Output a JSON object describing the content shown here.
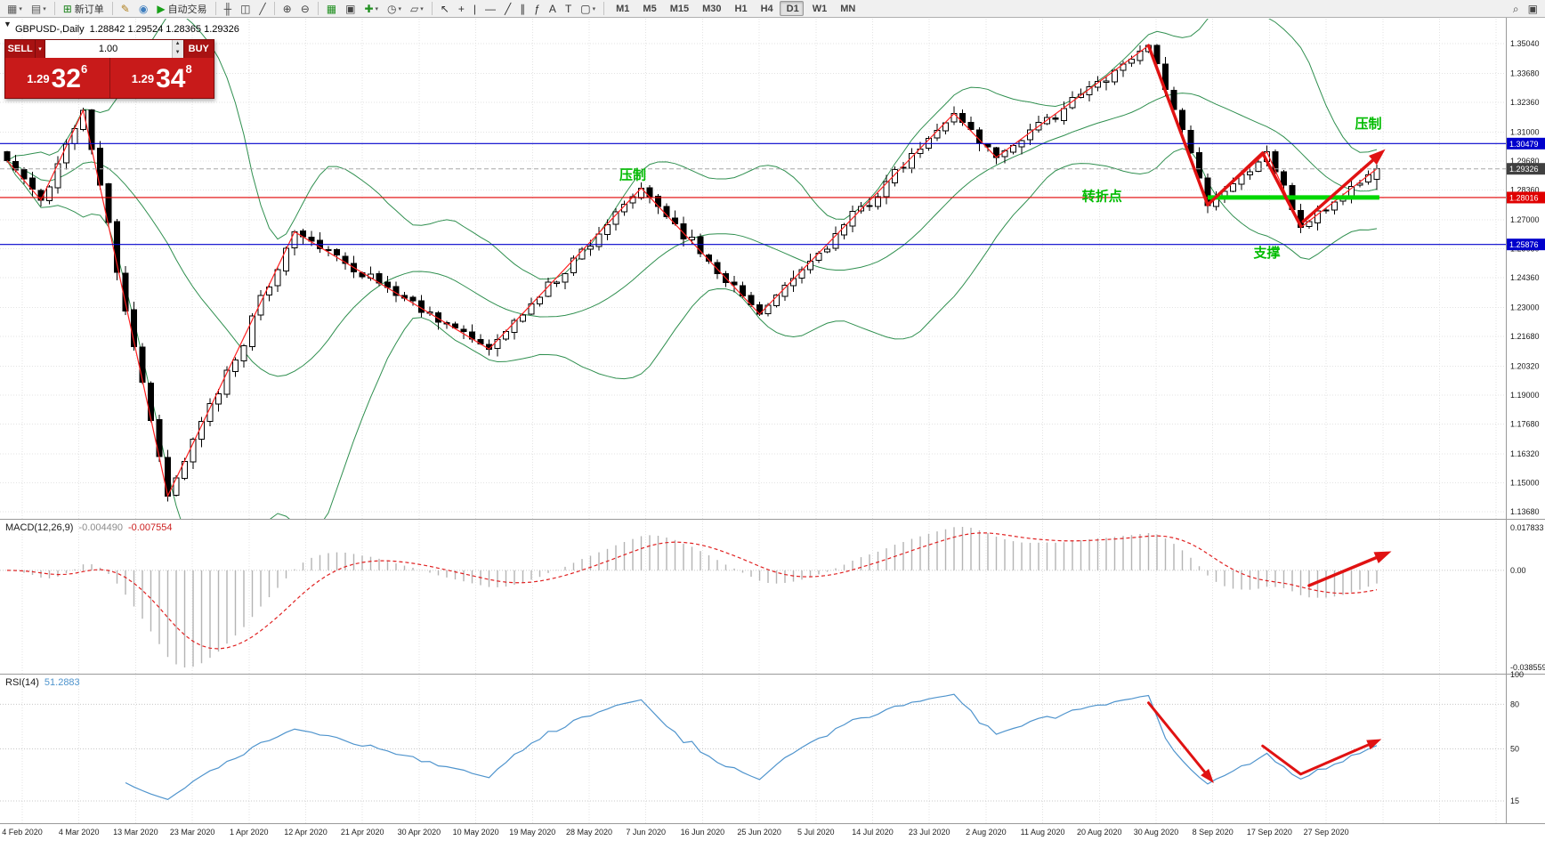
{
  "colors": {
    "accent_green": "#00bb00",
    "support_line": "#00d800",
    "arrow_red": "#e01212",
    "zigzag_red": "#ff2020",
    "bollinger_green": "#2f8f4f",
    "rsi_blue": "#4f94cd",
    "macd_hist": "#b4b4b4",
    "macd_signal": "#e02020",
    "hline_blue": "#0000cc",
    "hline_red": "#e00000",
    "bid_tag_bg": "#404040",
    "panel_red": "#c81a1a",
    "panel_dark_red": "#9e1010"
  },
  "toolbar": {
    "groups": [
      {
        "name": "chart-windows-group",
        "items": [
          {
            "name": "new-chart-icon",
            "glyph": "▦",
            "color": "#555",
            "dropdown": true
          },
          {
            "name": "profiles-icon",
            "glyph": "▤",
            "color": "#555",
            "dropdown": true
          }
        ]
      },
      {
        "name": "order-group",
        "items": [
          {
            "name": "new-order-button",
            "glyph": "⊞",
            "color": "#188018",
            "label": "新订单"
          }
        ]
      },
      {
        "name": "autotrade-group",
        "items": [
          {
            "name": "metaeditor-icon",
            "glyph": "✎",
            "color": "#b08020"
          },
          {
            "name": "market-icon",
            "glyph": "◉",
            "color": "#3f7fbf"
          },
          {
            "name": "autotrading-button",
            "glyph": "▶",
            "color": "#18a018",
            "label": "自动交易"
          }
        ]
      },
      {
        "name": "chart-type-group",
        "items": [
          {
            "name": "bar-chart-type-icon",
            "glyph": "╫",
            "color": "#444"
          },
          {
            "name": "candlestick-type-icon",
            "glyph": "◫",
            "color": "#444"
          },
          {
            "name": "line-chart-type-icon",
            "glyph": "╱",
            "color": "#444"
          }
        ]
      },
      {
        "name": "zoom-group",
        "items": [
          {
            "name": "zoom-in-icon",
            "glyph": "⊕",
            "color": "#444"
          },
          {
            "name": "zoom-out-icon",
            "glyph": "⊖",
            "color": "#444"
          }
        ]
      },
      {
        "name": "window-tools-group",
        "items": [
          {
            "name": "tile-windows-icon",
            "glyph": "▦",
            "color": "#1f8f1f"
          },
          {
            "name": "cascade-windows-icon",
            "glyph": "▣",
            "color": "#444"
          },
          {
            "name": "indicators-icon",
            "glyph": "✚",
            "color": "#1f8f1f",
            "dropdown": true
          },
          {
            "name": "periods-icon",
            "glyph": "◷",
            "color": "#444",
            "dropdown": true
          },
          {
            "name": "templates-icon",
            "glyph": "▱",
            "color": "#444",
            "dropdown": true
          }
        ]
      },
      {
        "name": "drawing-tools-group",
        "items": [
          {
            "name": "cursor-icon",
            "glyph": "↖",
            "color": "#333"
          },
          {
            "name": "crosshair-icon",
            "glyph": "+",
            "color": "#333"
          },
          {
            "name": "vertical-line-icon",
            "glyph": "|",
            "color": "#333"
          },
          {
            "name": "horizontal-line-icon",
            "glyph": "―",
            "color": "#333"
          },
          {
            "name": "trendline-icon",
            "glyph": "╱",
            "color": "#333"
          },
          {
            "name": "channel-icon",
            "glyph": "∥",
            "color": "#333"
          },
          {
            "name": "fibonacci-icon",
            "glyph": "ƒ",
            "color": "#333"
          },
          {
            "name": "text-icon",
            "glyph": "A",
            "color": "#333"
          },
          {
            "name": "label-icon",
            "glyph": "T",
            "color": "#333"
          },
          {
            "name": "shapes-icon",
            "glyph": "▢",
            "color": "#333",
            "dropdown": true
          }
        ]
      },
      {
        "name": "timeframe-group",
        "items": [
          {
            "name": "timeframe-m1",
            "label": "M1"
          },
          {
            "name": "timeframe-m5",
            "label": "M5"
          },
          {
            "name": "timeframe-m15",
            "label": "M15"
          },
          {
            "name": "timeframe-m30",
            "label": "M30"
          },
          {
            "name": "timeframe-h1",
            "label": "H1"
          },
          {
            "name": "timeframe-h4",
            "label": "H4"
          },
          {
            "name": "timeframe-d1",
            "label": "D1",
            "active": true
          },
          {
            "name": "timeframe-w1",
            "label": "W1"
          },
          {
            "name": "timeframe-mn",
            "label": "MN"
          }
        ]
      },
      {
        "name": "right-icons-group",
        "right": true,
        "items": [
          {
            "name": "search-icon",
            "glyph": "⌕",
            "color": "#444"
          },
          {
            "name": "community-icon",
            "glyph": "▣",
            "color": "#444"
          }
        ]
      }
    ]
  },
  "info": {
    "symbol_period": "GBPUSD-,Daily",
    "ohlc": "1.28842 1.29524 1.28365 1.29326"
  },
  "one_click": {
    "toggle_glyph": "▼",
    "sell_label": "SELL",
    "buy_label": "BUY",
    "volume": "1.00",
    "sell_price_prefix": "1.29",
    "sell_price_big": "32",
    "sell_price_sup": "6",
    "buy_price_prefix": "1.29",
    "buy_price_big": "34",
    "buy_price_sup": "8"
  },
  "chart_data": {
    "type": "candlestick",
    "symbol": "GBPUSD-",
    "timeframe": "Daily",
    "price_pane": {
      "axis_labels": [
        "1.35040",
        "1.33680",
        "1.32360",
        "1.31000",
        "1.29680",
        "1.28360",
        "1.27000",
        "1.25680",
        "1.24360",
        "1.23000",
        "1.21680",
        "1.20320",
        "1.19000",
        "1.17680",
        "1.16320",
        "1.15000",
        "1.13680"
      ],
      "price_max": 1.3504,
      "price_min": 1.1368,
      "candles": {
        "count": 163,
        "seed": 11,
        "zigzag_anchors": [
          [
            0,
            1.297
          ],
          [
            4,
            1.279
          ],
          [
            9,
            1.32
          ],
          [
            19,
            1.144
          ],
          [
            34,
            1.2645
          ],
          [
            57,
            1.211
          ],
          [
            75,
            1.2845
          ],
          [
            89,
            1.227
          ],
          [
            112,
            1.3185
          ],
          [
            117,
            1.2985
          ],
          [
            135,
            1.3495
          ],
          [
            142,
            1.2765
          ],
          [
            149,
            1.301
          ],
          [
            153,
            1.2665
          ],
          [
            162,
            1.29326
          ]
        ]
      },
      "last_candle": {
        "open": 1.28842,
        "high": 1.29524,
        "low": 1.28365,
        "close": 1.29326
      },
      "bollinger": {
        "period": 20,
        "deviation": 2
      },
      "hlines": [
        {
          "price": 1.30479,
          "color": "#0000cc",
          "tag": "1.30479"
        },
        {
          "price": 1.28016,
          "color": "#e00000",
          "tag": "1.28016"
        },
        {
          "price": 1.25876,
          "color": "#0000cc",
          "tag": "1.25876"
        }
      ],
      "bid": {
        "price": 1.29326,
        "tag": "1.29326"
      },
      "support_line": {
        "from_i": 142,
        "to_i": 162.3,
        "price": 1.2802,
        "width": 5
      },
      "annotations": [
        {
          "text": "压制",
          "i": 74,
          "p": 1.2885
        },
        {
          "text": "转折点",
          "i": 129.5,
          "p": 1.2787
        },
        {
          "text": "支撑",
          "i": 149,
          "p": 1.253
        },
        {
          "text": "压制",
          "i": 161,
          "p": 1.3118
        }
      ],
      "arrows": [
        {
          "points": [
            [
              135,
              1.3495
            ],
            [
              142,
              1.2768
            ],
            [
              148.5,
              1.3005
            ],
            [
              153,
              1.2672
            ]
          ],
          "width": 3.5,
          "head": false
        },
        {
          "points": [
            [
              153.3,
              1.2692
            ],
            [
              162,
              1.2988
            ]
          ],
          "width": 3.5,
          "head": true
        }
      ]
    },
    "macd_pane": {
      "label": "MACD(12,26,9)",
      "value_main": "-0.004490",
      "value_signal": "-0.007554",
      "fast": 12,
      "slow": 26,
      "signal": 9,
      "axis_max_label": "0.017833",
      "axis_zero_label": "0.00",
      "axis_min_label": "-0.038559",
      "arrow": {
        "points": [
          [
            154,
            -0.0058
          ],
          [
            162.5,
            0.0056
          ]
        ],
        "width": 3.5,
        "head": true
      }
    },
    "rsi_pane": {
      "label": "RSI(14)",
      "value": "51.2883",
      "period": 14,
      "levels": [
        80,
        50,
        15
      ],
      "axis_labels": [
        {
          "v": 100,
          "text": "100"
        },
        {
          "v": 80,
          "text": "80"
        },
        {
          "v": 50,
          "text": "50"
        },
        {
          "v": 15,
          "text": "15"
        }
      ],
      "arrows": [
        {
          "points": [
            [
              135,
              81
            ],
            [
              142,
              32
            ]
          ],
          "width": 3,
          "head": true
        },
        {
          "points": [
            [
              148.5,
              52
            ],
            [
              153,
              33
            ],
            [
              161.5,
              54
            ]
          ],
          "width": 3,
          "head": true
        }
      ]
    },
    "time_axis": {
      "labels": [
        "4 Feb 2020",
        "4 Mar 2020",
        "13 Mar 2020",
        "23 Mar 2020",
        "1 Apr 2020",
        "12 Apr 2020",
        "21 Apr 2020",
        "30 Apr 2020",
        "10 May 2020",
        "19 May 2020",
        "28 May 2020",
        "7 Jun 2020",
        "16 Jun 2020",
        "25 Jun 2020",
        "5 Jul 2020",
        "14 Jul 2020",
        "23 Jul 2020",
        "2 Aug 2020",
        "11 Aug 2020",
        "20 Aug 2020",
        "30 Aug 2020",
        "8 Sep 2020",
        "17 Sep 2020",
        "27 Sep 2020"
      ]
    }
  }
}
